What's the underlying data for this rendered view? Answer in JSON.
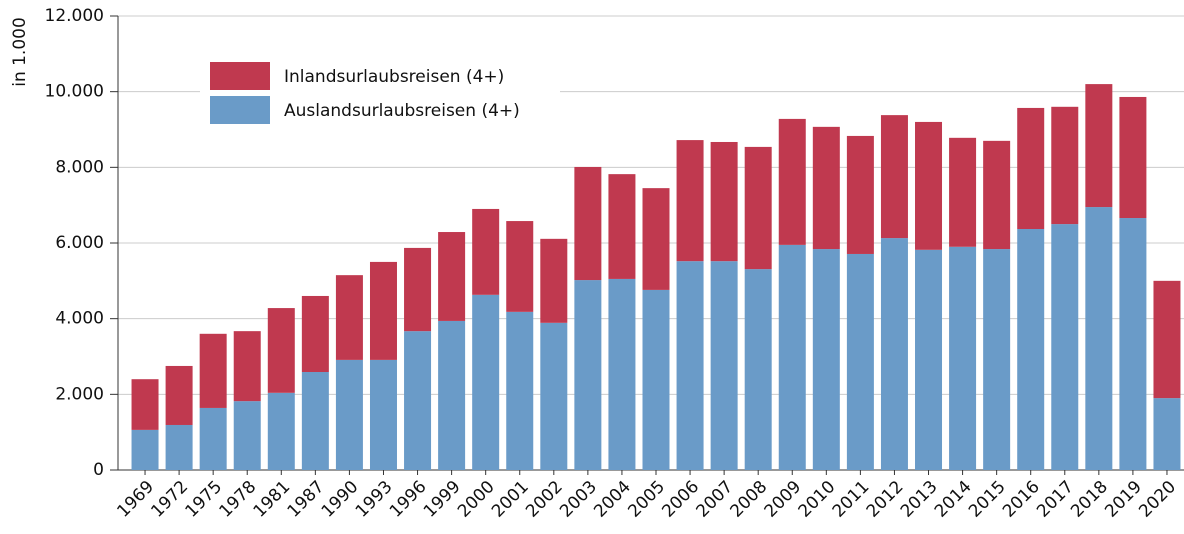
{
  "chart_data": {
    "type": "bar",
    "stacked": true,
    "y_label": "in 1.000",
    "categories": [
      "1969",
      "1972",
      "1975",
      "1978",
      "1981",
      "1987",
      "1990",
      "1993",
      "1996",
      "1999",
      "2000",
      "2001",
      "2002",
      "2003",
      "2004",
      "2005",
      "2006",
      "2007",
      "2008",
      "2009",
      "2010",
      "2011",
      "2012",
      "2013",
      "2014",
      "2015",
      "2016",
      "2017",
      "2018",
      "2019",
      "2020"
    ],
    "series": [
      {
        "name": "Auslandsurlaubsreisen (4+)",
        "color": "#6a9bc8",
        "values": [
          1060,
          1190,
          1640,
          1820,
          2040,
          2590,
          2910,
          2910,
          3670,
          3940,
          4630,
          4180,
          3890,
          5020,
          5050,
          4760,
          5520,
          5520,
          5310,
          5950,
          5840,
          5710,
          6130,
          5820,
          5900,
          5840,
          6370,
          6500,
          6950,
          6660,
          1900
        ]
      },
      {
        "name": "Inlandsurlaubsreisen (4+)",
        "color": "#c0394f",
        "values": [
          1340,
          1560,
          1960,
          1850,
          2240,
          2010,
          2240,
          2590,
          2200,
          2350,
          2270,
          2400,
          2220,
          2990,
          2770,
          2690,
          3200,
          3150,
          3230,
          3330,
          3230,
          3120,
          3250,
          3380,
          2880,
          2860,
          3200,
          3100,
          3250,
          3200,
          3100
        ]
      }
    ],
    "ylim": [
      0,
      12000
    ],
    "yticks": [
      {
        "value": 0,
        "label": "0"
      },
      {
        "value": 2000,
        "label": "2.000"
      },
      {
        "value": 4000,
        "label": "4.000"
      },
      {
        "value": 6000,
        "label": "6.000"
      },
      {
        "value": 8000,
        "label": "8.000"
      },
      {
        "value": 10000,
        "label": "10.000"
      },
      {
        "value": 12000,
        "label": "12.000"
      }
    ],
    "grid": true,
    "legend": "upper left"
  }
}
